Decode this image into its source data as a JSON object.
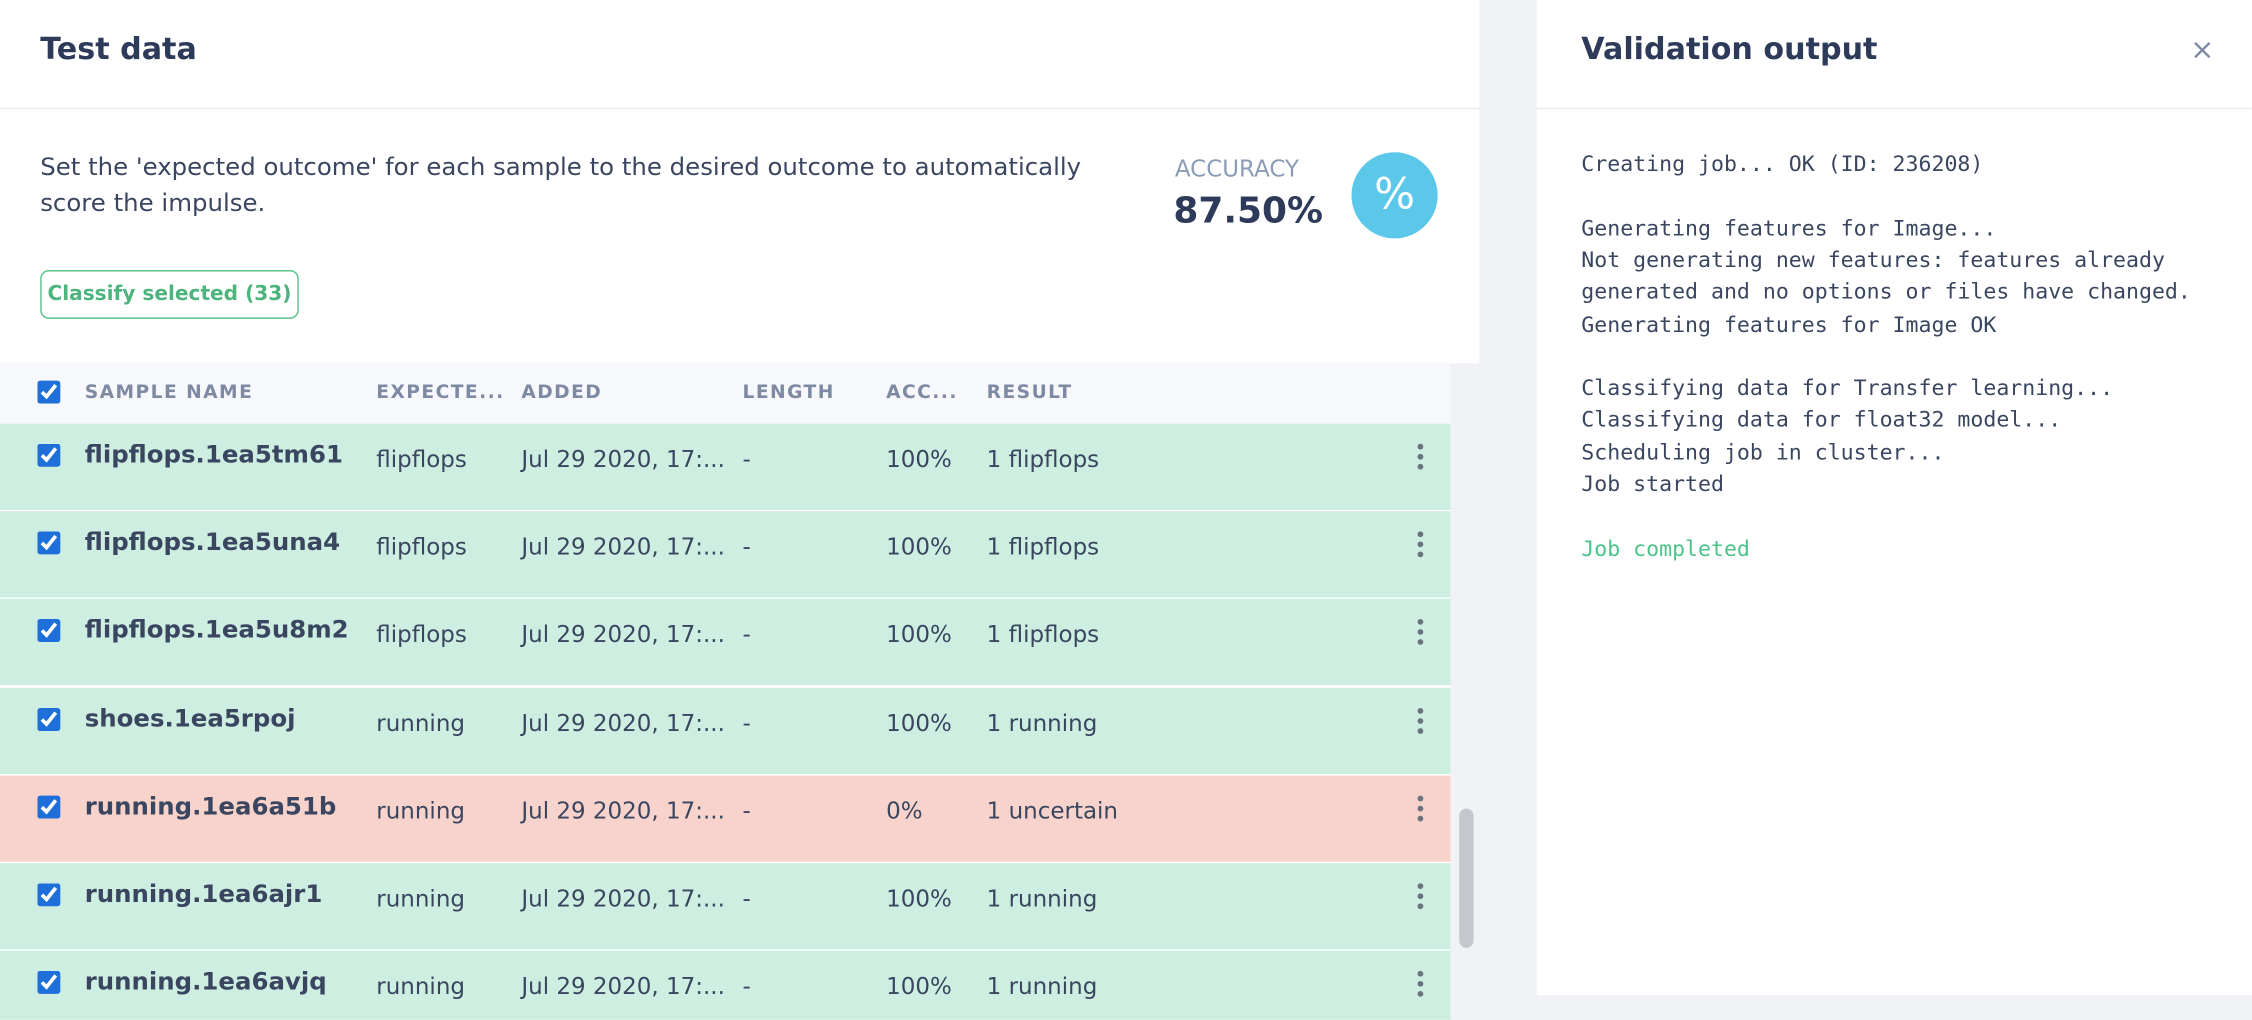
{
  "left": {
    "title": "Test data",
    "description": "Set the 'expected outcome' for each sample to the desired outcome to automatically score the impulse.",
    "accuracy_label": "ACCURACY",
    "accuracy_value": "87.50%",
    "icon": "%",
    "button": "Classify selected (33)",
    "columns": [
      "SAMPLE NAME",
      "EXPECTE...",
      "ADDED",
      "LENGTH",
      "ACC...",
      "RESULT"
    ],
    "rows": [
      {
        "name": "flipflops.1ea5tm61",
        "expected": "flipflops",
        "added": "Jul 29 2020, 17:...",
        "length": "-",
        "accuracy": "100%",
        "result": "1 flipflops",
        "color": "#cdeee0"
      },
      {
        "name": "flipflops.1ea5una4",
        "expected": "flipflops",
        "added": "Jul 29 2020, 17:...",
        "length": "-",
        "accuracy": "100%",
        "result": "1 flipflops",
        "color": "#cdeee0"
      },
      {
        "name": "flipflops.1ea5u8m2",
        "expected": "flipflops",
        "added": "Jul 29 2020, 17:...",
        "length": "-",
        "accuracy": "100%",
        "result": "1 flipflops",
        "color": "#cdeee0"
      },
      {
        "name": "shoes.1ea5rpoj",
        "expected": "running",
        "added": "Jul 29 2020, 17:...",
        "length": "-",
        "accuracy": "100%",
        "result": "1 running",
        "color": "#cdeee0"
      },
      {
        "name": "running.1ea6a51b",
        "expected": "running",
        "added": "Jul 29 2020, 17:...",
        "length": "-",
        "accuracy": "0%",
        "result": "1 uncertain",
        "color": "#f8d3cc"
      },
      {
        "name": "running.1ea6ajr1",
        "expected": "running",
        "added": "Jul 29 2020, 17:...",
        "length": "-",
        "accuracy": "100%",
        "result": "1 running",
        "color": "#cdeee0"
      },
      {
        "name": "running.1ea6avjq",
        "expected": "running",
        "added": "Jul 29 2020, 17:...",
        "length": "-",
        "accuracy": "100%",
        "result": "1 running",
        "color": "#cdeee0"
      }
    ]
  },
  "right": {
    "title": "Validation output",
    "log": [
      [
        "Creating job... OK (ID: 236208)"
      ],
      [
        "Generating features for Image...",
        "Not generating new features: features already",
        "generated and no options or files have changed.",
        "Generating features for Image OK"
      ],
      [
        "Classifying data for Transfer learning...",
        "Classifying data for float32 model...",
        "Scheduling job in cluster...",
        "Job started"
      ]
    ],
    "completed": "Job completed"
  }
}
